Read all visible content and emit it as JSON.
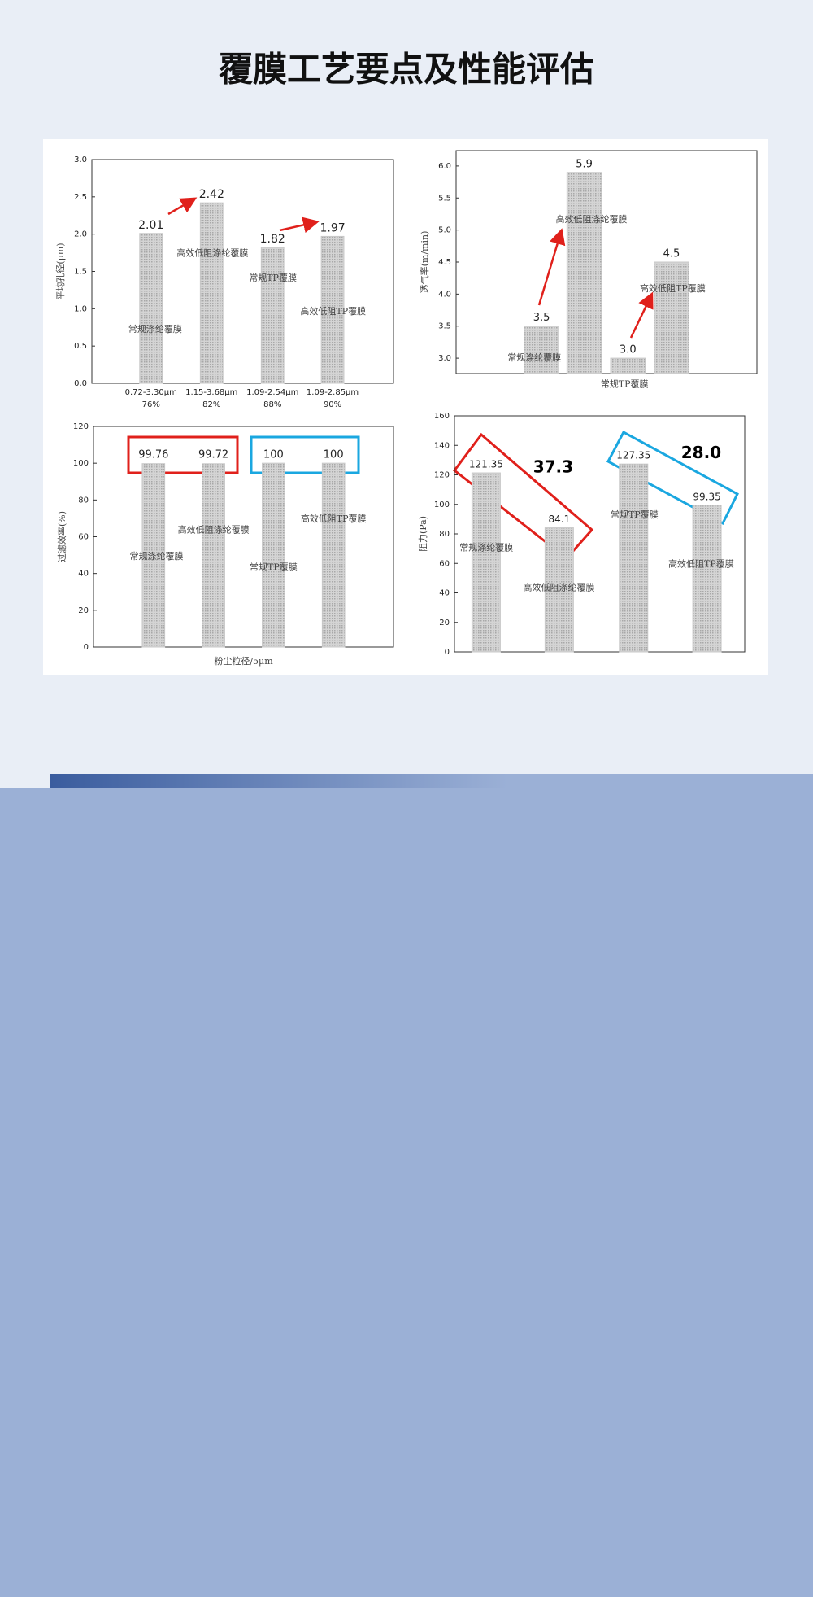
{
  "title": "覆膜工艺要点及性能评估",
  "chart_data": [
    {
      "type": "bar",
      "ylabel": "平均孔径(μm)",
      "values": [
        2.01,
        2.42,
        1.82,
        1.97
      ],
      "bar_names": [
        "常规涤纶覆膜",
        "高效低阻涤纶覆膜",
        "常规TP覆膜",
        "高效低阻TP覆膜"
      ],
      "categories": [
        "0.72-3.30μm",
        "1.15-3.68μm",
        "1.09-2.54μm",
        "1.09-2.85μm"
      ],
      "category_notes": [
        "76%",
        "82%",
        "88%",
        "90%"
      ],
      "ylim": [
        0,
        3
      ],
      "yticks": [
        {
          "value": 0,
          "label": "0.0"
        },
        {
          "value": 0.5,
          "label": "0.5"
        },
        {
          "value": 1,
          "label": "1.0"
        },
        {
          "value": 1.5,
          "label": "1.5"
        },
        {
          "value": 2,
          "label": "2.0"
        },
        {
          "value": 2.5,
          "label": "2.5"
        },
        {
          "value": 3,
          "label": "3.0"
        }
      ],
      "color": "#c8c8c8",
      "grid": false
    },
    {
      "type": "bar",
      "ylabel": "透气率(m/min)",
      "values": [
        3.5,
        5.9,
        3.0,
        4.5
      ],
      "value_labels": [
        "3.5",
        "5.9",
        "3.0",
        "4.5"
      ],
      "bar_names": [
        "常规涤纶覆膜",
        "高效低阻涤纶覆膜",
        "常规TP覆膜",
        "高效低阻TP覆膜"
      ],
      "ylim": [
        2.76,
        6.24
      ],
      "yticks": [
        {
          "value": 3,
          "label": "3.0"
        },
        3.5,
        {
          "value": 4,
          "label": "4.0"
        },
        4.5,
        {
          "value": 5,
          "label": "5.0"
        },
        5.5,
        {
          "value": 6,
          "label": "6.0"
        }
      ],
      "color": "#c8c8c8",
      "grid": false
    },
    {
      "type": "bar",
      "ylabel": "过滤效率(%)",
      "xlabel": "粉尘粒径/5μm",
      "values": [
        99.76,
        99.72,
        100,
        100
      ],
      "bar_names": [
        "常规涤纶覆膜",
        "高效低阻涤纶覆膜",
        "常规TP覆膜",
        "高效低阻TP覆膜"
      ],
      "ylim": [
        0,
        120
      ],
      "yticks": [
        0,
        20,
        40,
        60,
        80,
        100,
        120
      ],
      "color": "#c8c8c8",
      "grid": false
    },
    {
      "type": "bar",
      "ylabel": "阻力(Pa)",
      "values": [
        121.35,
        84.1,
        127.35,
        99.35
      ],
      "bar_names": [
        "常规涤纶覆膜",
        "高效低阻涤纶覆膜",
        "常规TP覆膜",
        "高效低阻TP覆膜"
      ],
      "annotations": [
        "37.3",
        "28.0"
      ],
      "ylim": [
        0,
        160
      ],
      "yticks": [
        0,
        20,
        40,
        60,
        80,
        100,
        120,
        140,
        160
      ],
      "color": "#c8c8c8",
      "grid": false
    }
  ]
}
